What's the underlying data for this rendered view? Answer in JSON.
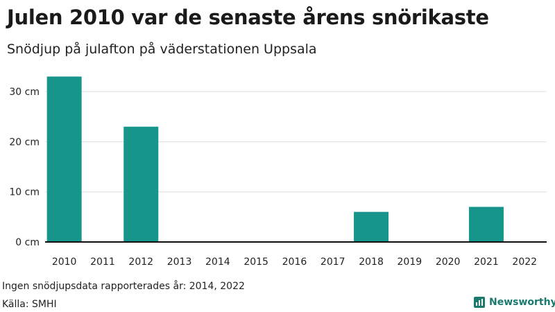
{
  "title": "Julen 2010 var de senaste årens snörikaste",
  "subtitle": "Snödjup på julafton på väderstationen Uppsala",
  "note": "Ingen snödjupsdata rapporterades år: 2014, 2022",
  "source": "Källa: SMHI",
  "brand": {
    "name": "Newsworthy",
    "icon": "bar-chart-logo-icon"
  },
  "colors": {
    "bar": "#16968a",
    "grid": "#dddddd",
    "axis": "#111111",
    "brand": "#1a7a6e"
  },
  "chart_data": {
    "type": "bar",
    "categories": [
      "2010",
      "2011",
      "2012",
      "2013",
      "2014",
      "2015",
      "2016",
      "2017",
      "2018",
      "2019",
      "2020",
      "2021",
      "2022"
    ],
    "values": [
      33,
      0,
      23,
      0,
      null,
      0,
      0,
      0,
      6,
      0,
      0,
      7,
      null
    ],
    "ylim": [
      0,
      35
    ],
    "yticks": [
      0,
      10,
      20,
      30
    ],
    "ytick_labels": [
      "0 cm",
      "10 cm",
      "20 cm",
      "30 cm"
    ],
    "grid": true,
    "legend": "none"
  }
}
